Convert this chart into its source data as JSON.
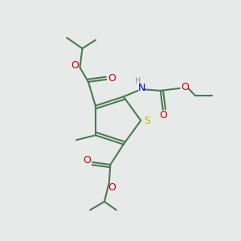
{
  "background_color": "#e8eaea",
  "bond_color": "#4a7a50",
  "S_color": "#b8b800",
  "N_color": "#0000cc",
  "O_color": "#cc0000",
  "H_color": "#888888",
  "line_width": 1.5,
  "figsize": [
    3.0,
    3.0
  ],
  "dpi": 100,
  "xlim": [
    0,
    10
  ],
  "ylim": [
    0,
    10
  ]
}
